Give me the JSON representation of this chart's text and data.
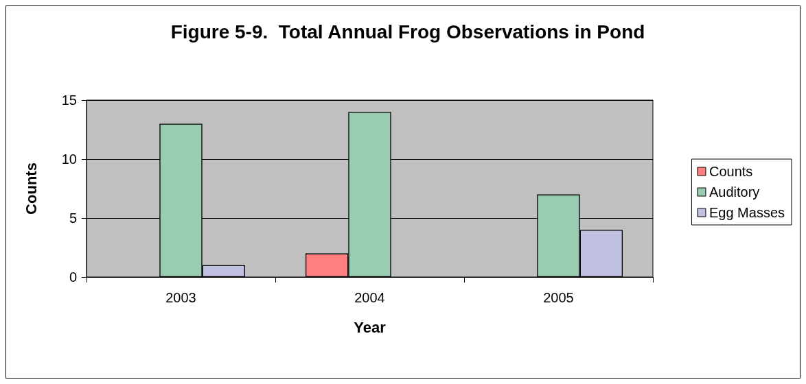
{
  "chart_data": {
    "type": "bar",
    "title": "Figure 5-9.  Total Annual Frog Observations in Pond",
    "xlabel": "Year",
    "ylabel": "Counts",
    "categories": [
      "2003",
      "2004",
      "2005"
    ],
    "series": [
      {
        "name": "Counts",
        "color": "#ff8080",
        "values": [
          0,
          2,
          0
        ]
      },
      {
        "name": "Auditory",
        "color": "#99ccb0",
        "values": [
          13,
          14,
          7
        ]
      },
      {
        "name": "Egg Masses",
        "color": "#c0c0e0",
        "values": [
          1,
          0,
          4
        ]
      }
    ],
    "ylim": [
      0,
      15
    ],
    "yticks": [
      0,
      5,
      10,
      15
    ],
    "grid": "y",
    "legend": "right"
  }
}
